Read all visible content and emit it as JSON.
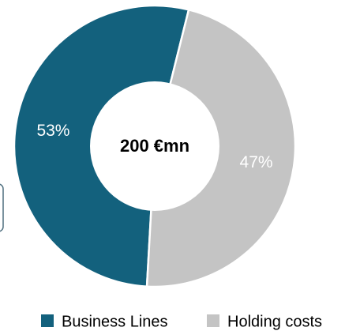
{
  "chart_data": {
    "type": "donut",
    "center_label": "200 €mn",
    "series": [
      {
        "name": "Business Lines",
        "value": 53,
        "label": "53%",
        "color": "#13617d",
        "label_color": "#ffffff"
      },
      {
        "name": "Holding costs",
        "value": 47,
        "label": "47%",
        "color": "#c4c4c4",
        "label_color": "#ffffff"
      }
    ],
    "legend_position": "bottom",
    "colors": {
      "center_text": "#000000",
      "legend_text": "#000000",
      "side_box_border": "#4f6f7f"
    }
  }
}
